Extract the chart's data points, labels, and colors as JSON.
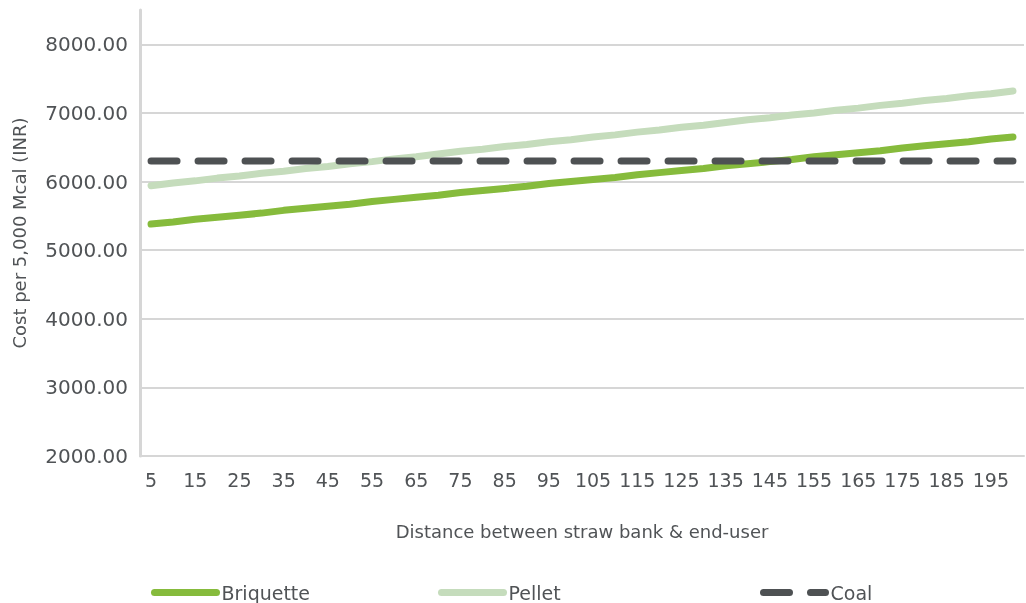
{
  "chart_data": {
    "type": "line",
    "xlabel": "Distance between straw bank & end-user",
    "ylabel": "Cost per 5,000 Mcal (INR)",
    "categories": [
      "5",
      null,
      "15",
      null,
      "25",
      null,
      "35",
      null,
      "45",
      null,
      "55",
      null,
      "65",
      null,
      "75",
      null,
      "85",
      null,
      "95",
      null,
      "105",
      null,
      "115",
      null,
      "125",
      null,
      "135",
      null,
      "145",
      null,
      "155",
      null,
      "165",
      null,
      "175",
      null,
      "185",
      null,
      "195",
      null
    ],
    "series": [
      {
        "name": "Briquette",
        "color": "#86bb3c",
        "values": [
          5380,
          5410,
          5450,
          5480,
          5510,
          5540,
          5580,
          5610,
          5640,
          5670,
          5710,
          5740,
          5770,
          5800,
          5840,
          5870,
          5900,
          5930,
          5970,
          6000,
          6030,
          6060,
          6100,
          6130,
          6160,
          6190,
          6230,
          6260,
          6290,
          6320,
          6360,
          6390,
          6420,
          6450,
          6490,
          6520,
          6550,
          6580,
          6620,
          6650
        ]
      },
      {
        "name": "Pellet",
        "color": "#c5dcbc",
        "values": [
          5940,
          5980,
          6010,
          6050,
          6080,
          6120,
          6150,
          6190,
          6220,
          6260,
          6290,
          6330,
          6360,
          6400,
          6440,
          6470,
          6510,
          6540,
          6580,
          6610,
          6650,
          6680,
          6720,
          6750,
          6790,
          6820,
          6860,
          6900,
          6930,
          6970,
          7000,
          7040,
          7070,
          7110,
          7140,
          7180,
          7210,
          7250,
          7280,
          7320
        ]
      },
      {
        "name": "Coal",
        "color": "#4e5153",
        "line_style": "dashed",
        "values": [
          6300,
          6300,
          6300,
          6300,
          6300,
          6300,
          6300,
          6300,
          6300,
          6300,
          6300,
          6300,
          6300,
          6300,
          6300,
          6300,
          6300,
          6300,
          6300,
          6300,
          6300,
          6300,
          6300,
          6300,
          6300,
          6300,
          6300,
          6300,
          6300,
          6300,
          6300,
          6300,
          6300,
          6300,
          6300,
          6300,
          6300,
          6300,
          6300,
          6300
        ]
      }
    ],
    "ylim": [
      2000,
      8500
    ],
    "yticks": [
      {
        "value": 2000,
        "label": "2000.00"
      },
      {
        "value": 3000,
        "label": "3000.00"
      },
      {
        "value": 4000,
        "label": "4000.00"
      },
      {
        "value": 5000,
        "label": "5000.00"
      },
      {
        "value": 6000,
        "label": "6000.00"
      },
      {
        "value": 7000,
        "label": "7000.00"
      },
      {
        "value": 8000,
        "label": "8000.00"
      }
    ],
    "grid": "y",
    "legend": "bottom",
    "marker": "none",
    "line_style": "solid"
  }
}
